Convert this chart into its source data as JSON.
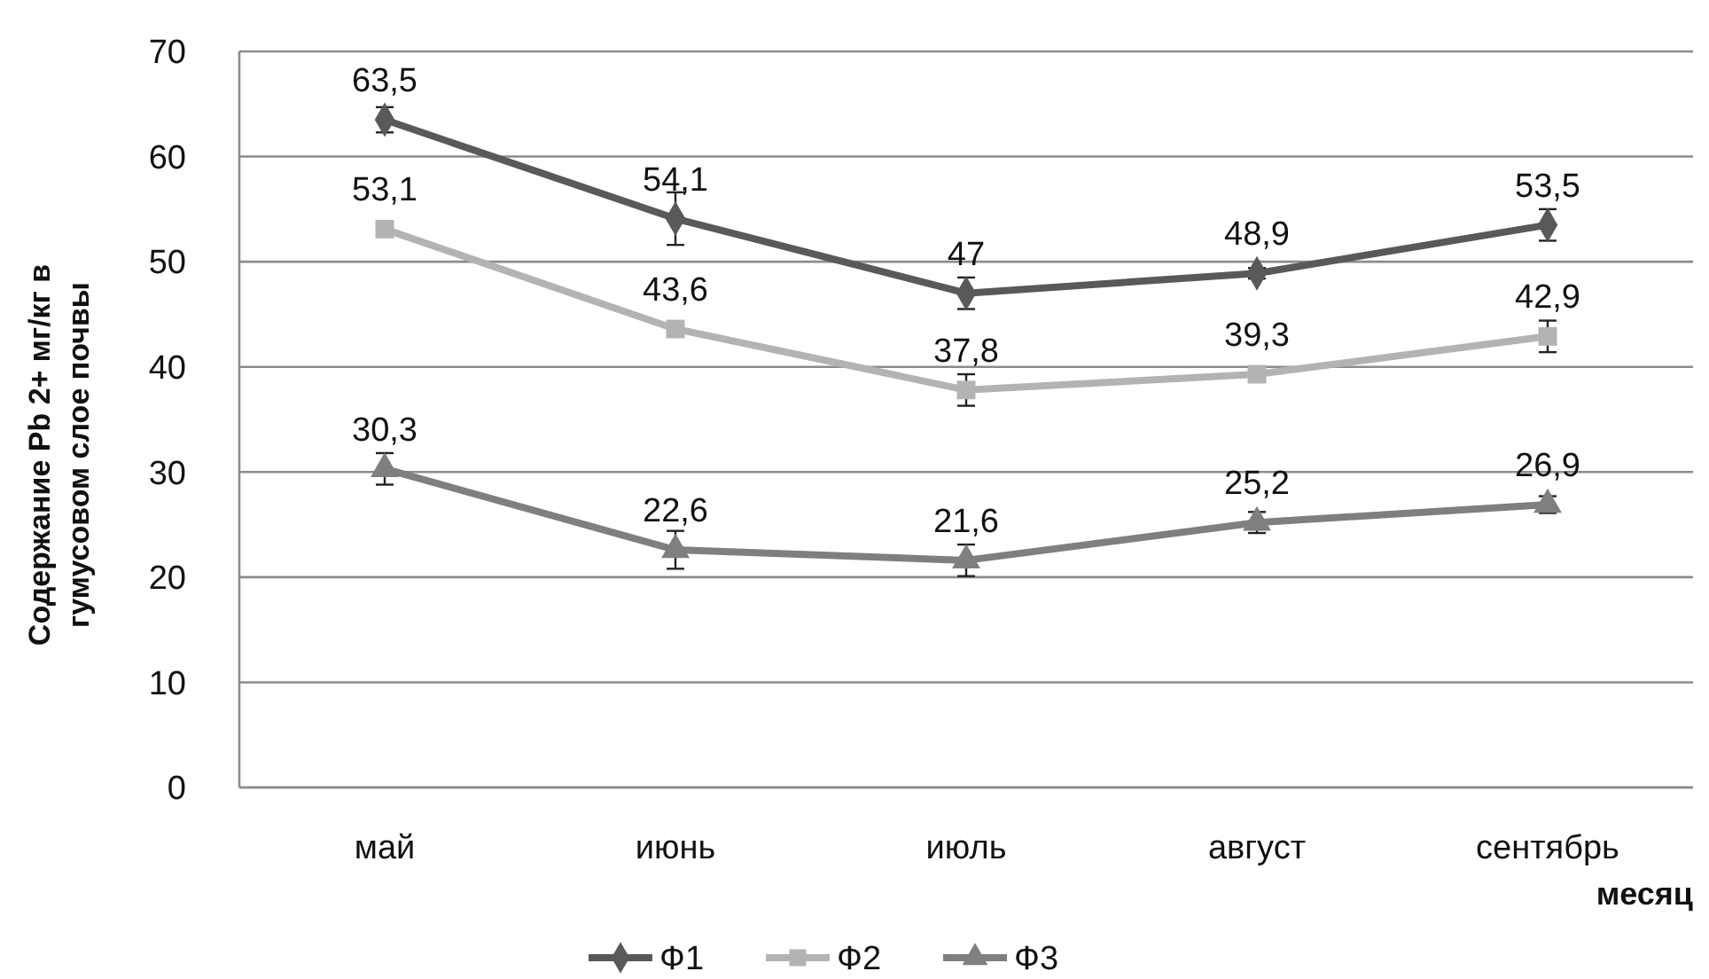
{
  "chart_data": {
    "type": "line",
    "ylabel": "Содержание Pb 2+ мг/кг в гумусовом слое почвы",
    "xlabel": "месяц",
    "categories": [
      "май",
      "июнь",
      "июль",
      "август",
      "сентябрь"
    ],
    "ylim": [
      0,
      70
    ],
    "yticks": [
      0,
      10,
      20,
      30,
      40,
      50,
      60,
      70
    ],
    "grid": "y",
    "legend": "bottom",
    "line_style": "solid",
    "series": [
      {
        "name": "Ф1",
        "color": "#595959",
        "marker": "diamond",
        "values": [
          63.5,
          54.1,
          47,
          48.9,
          53.5
        ],
        "value_labels": [
          "63,5",
          "54,1",
          "47",
          "48,9",
          "53,5"
        ],
        "errors": [
          1.2,
          2.5,
          1.5,
          0.5,
          1.5
        ]
      },
      {
        "name": "Ф2",
        "color": "#b3b3b3",
        "marker": "square",
        "values": [
          53.1,
          43.6,
          37.8,
          39.3,
          42.9
        ],
        "value_labels": [
          "53,1",
          "43,6",
          "37,8",
          "39,3",
          "42,9"
        ],
        "errors": [
          null,
          null,
          1.5,
          null,
          1.5
        ]
      },
      {
        "name": "Ф3",
        "color": "#7f7f7f",
        "marker": "triangle",
        "values": [
          30.3,
          22.6,
          21.6,
          25.2,
          26.9
        ],
        "value_labels": [
          "30,3",
          "22,6",
          "21,6",
          "25,2",
          "26,9"
        ],
        "errors": [
          1.5,
          1.8,
          1.5,
          1,
          0.8
        ]
      }
    ]
  }
}
